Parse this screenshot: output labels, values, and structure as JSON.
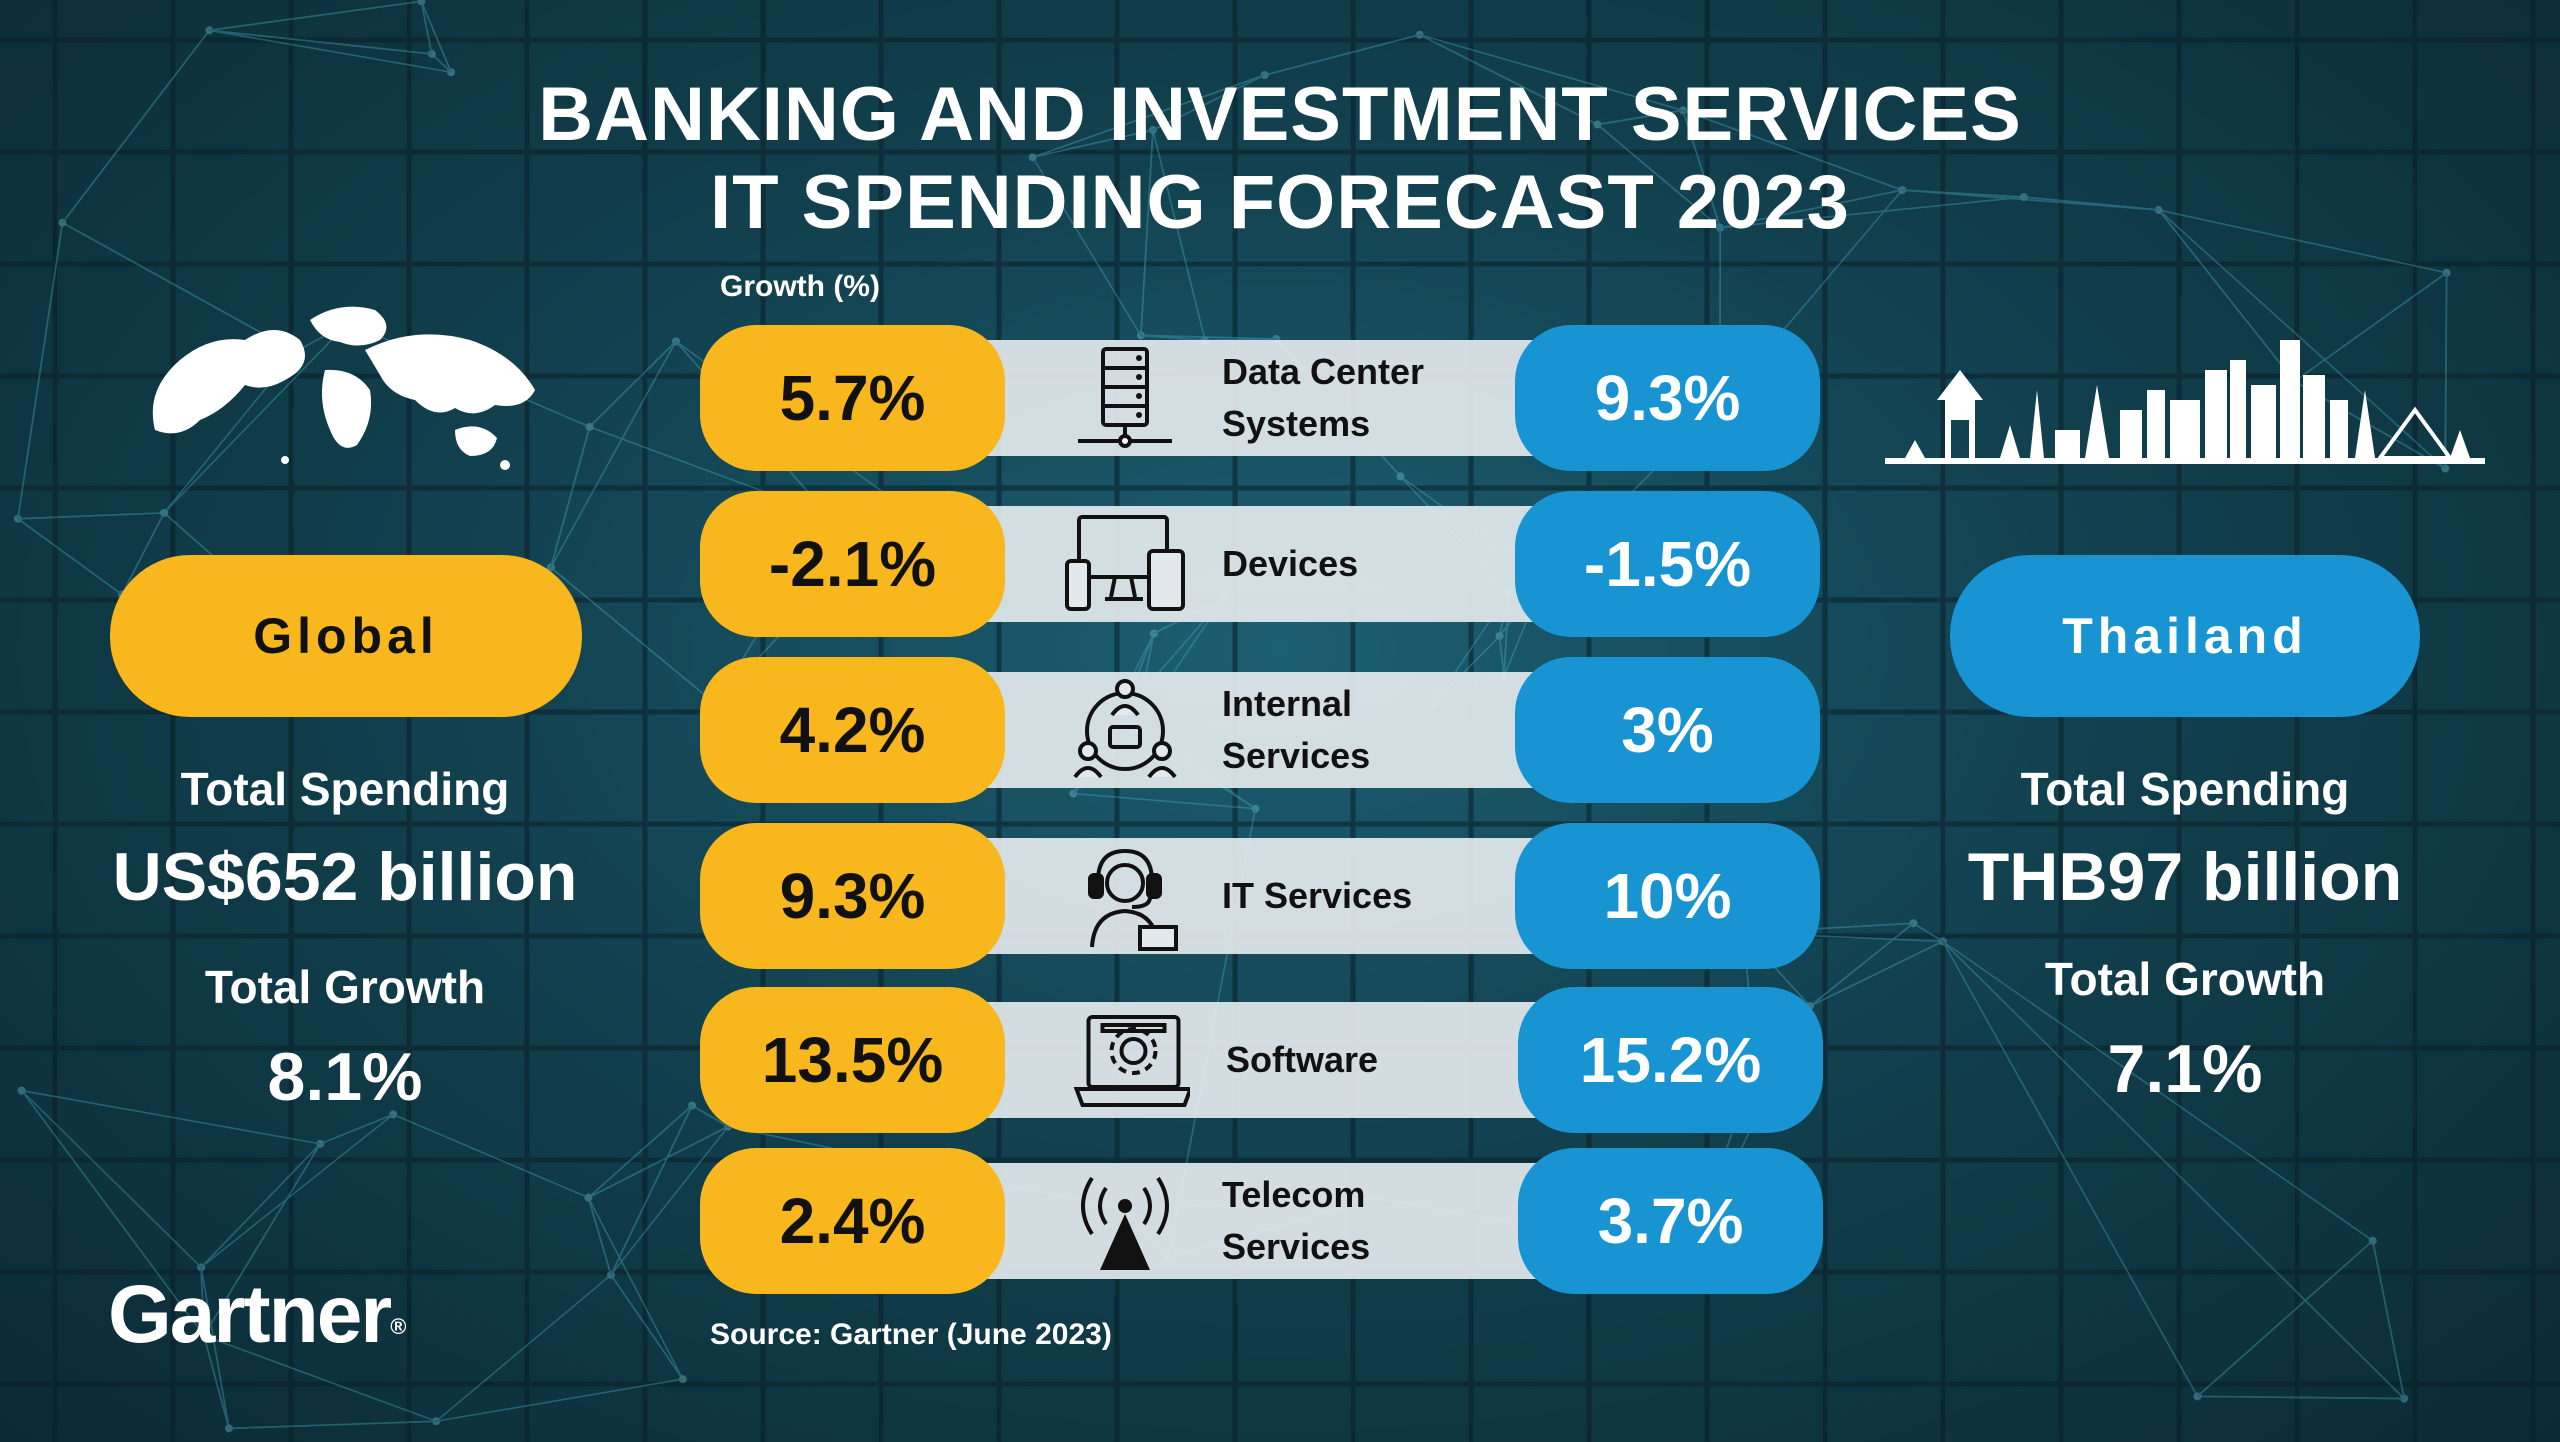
{
  "title": {
    "line1": "BANKING AND INVESTMENT SERVICES",
    "line2": "IT SPENDING FORECAST 2023"
  },
  "growth_label": "Growth (%)",
  "colors": {
    "global": "#f7b71d",
    "thailand": "#1894d2",
    "band": "#e2e8ec"
  },
  "global": {
    "name": "Global",
    "spending_label": "Total Spending",
    "spending_value": "US$652 billion",
    "growth_label": "Total Growth",
    "growth_value": "8.1%",
    "icon": "world-map-icon"
  },
  "thailand": {
    "name": "Thailand",
    "spending_label": "Total Spending",
    "spending_value": "THB97 billion",
    "growth_label": "Total Growth",
    "growth_value": "7.1%",
    "icon": "bangkok-skyline-icon"
  },
  "categories": [
    {
      "label_lines": [
        "Data Center",
        "Systems"
      ],
      "global": "5.7%",
      "thailand": "9.3%",
      "icon": "server-icon"
    },
    {
      "label_lines": [
        "Devices"
      ],
      "global": "-2.1%",
      "thailand": "-1.5%",
      "icon": "devices-icon"
    },
    {
      "label_lines": [
        "Internal",
        "Services"
      ],
      "global": "4.2%",
      "thailand": "3%",
      "icon": "people-network-icon"
    },
    {
      "label_lines": [
        "IT Services"
      ],
      "global": "9.3%",
      "thailand": "10%",
      "icon": "support-headset-icon"
    },
    {
      "label_lines": [
        "Software"
      ],
      "global": "13.5%",
      "thailand": "15.2%",
      "icon": "laptop-gear-icon"
    },
    {
      "label_lines": [
        "Telecom",
        "Services"
      ],
      "global": "2.4%",
      "thailand": "3.7%",
      "icon": "antenna-icon"
    }
  ],
  "source": "Source: Gartner (June 2023)",
  "logo": {
    "text": "Gartner",
    "mark": "®"
  }
}
